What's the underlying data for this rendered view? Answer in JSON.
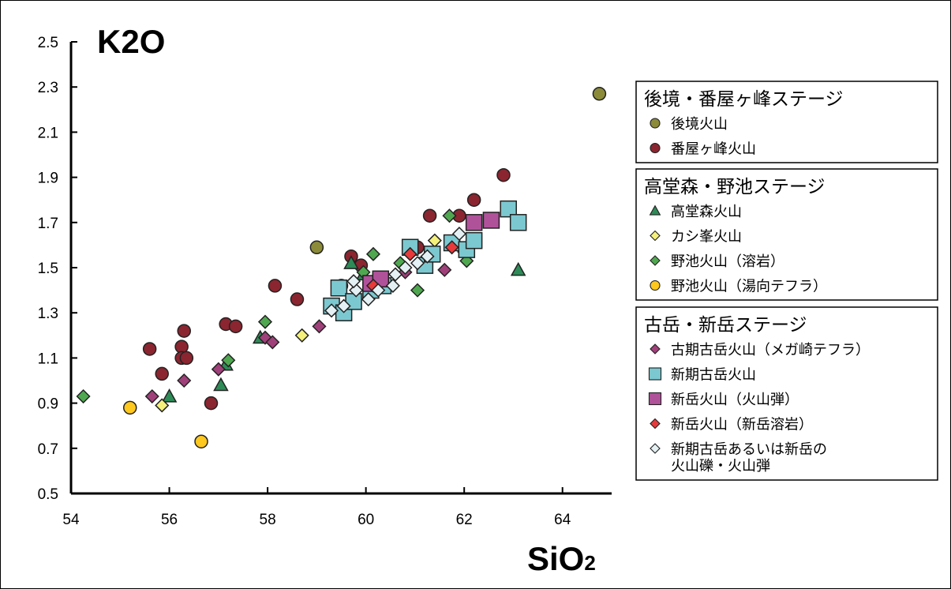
{
  "chart_data": {
    "type": "scatter",
    "ylabel": "K2O",
    "xlabel_main": "SiO",
    "xlabel_sub": "2",
    "xlim": [
      54,
      65
    ],
    "ylim": [
      0.5,
      2.5
    ],
    "xticks": [
      "54",
      "56",
      "58",
      "60",
      "62",
      "64"
    ],
    "yticks": [
      "2.5",
      "2.3",
      "2.1",
      "1.9",
      "1.7",
      "1.5",
      "1.3",
      "1.1",
      "0.9",
      "0.7",
      "0.5"
    ],
    "legend_groups": [
      {
        "title": "後境・番屋ヶ峰ステージ",
        "items": [
          {
            "label": "後境火山",
            "series": 0
          },
          {
            "label": "番屋ヶ峰火山",
            "series": 1
          }
        ]
      },
      {
        "title": "高堂森・野池ステージ",
        "items": [
          {
            "label": "高堂森火山",
            "series": 2
          },
          {
            "label": "カシ峯火山",
            "series": 3
          },
          {
            "label": "野池火山（溶岩）",
            "series": 4
          },
          {
            "label": "野池火山（湯向テフラ）",
            "series": 5
          }
        ]
      },
      {
        "title": "古岳・新岳ステージ",
        "items": [
          {
            "label": "古期古岳火山（メガ崎テフラ）",
            "series": 6
          },
          {
            "label": "新期古岳火山",
            "series": 7
          },
          {
            "label": "新岳火山（火山弾）",
            "series": 8
          },
          {
            "label": "新岳火山（新岳溶岩）",
            "series": 9
          },
          {
            "label": "新期古岳あるいは新岳の",
            "label2": "火山礫・火山弾",
            "series": 10
          }
        ]
      }
    ],
    "series": [
      {
        "name": "後境火山",
        "marker": "circle",
        "color": "#8b8b3a",
        "points": [
          [
            59.0,
            1.59
          ],
          [
            64.75,
            2.27
          ]
        ]
      },
      {
        "name": "番屋ヶ峰火山",
        "marker": "circle",
        "color": "#8b2530",
        "points": [
          [
            55.6,
            1.14
          ],
          [
            55.85,
            1.03
          ],
          [
            56.25,
            1.15
          ],
          [
            56.3,
            1.22
          ],
          [
            56.25,
            1.1
          ],
          [
            56.35,
            1.1
          ],
          [
            56.85,
            0.9
          ],
          [
            57.15,
            1.25
          ],
          [
            57.35,
            1.24
          ],
          [
            58.15,
            1.42
          ],
          [
            58.6,
            1.36
          ],
          [
            59.5,
            1.42
          ],
          [
            59.7,
            1.55
          ],
          [
            59.9,
            1.51
          ],
          [
            61.3,
            1.73
          ],
          [
            61.05,
            1.59
          ],
          [
            61.9,
            1.73
          ],
          [
            62.2,
            1.8
          ],
          [
            62.8,
            1.91
          ]
        ]
      },
      {
        "name": "高堂森火山",
        "marker": "triangle",
        "color": "#2e8b57",
        "points": [
          [
            56.0,
            0.93
          ],
          [
            57.05,
            0.98
          ],
          [
            57.15,
            1.07
          ],
          [
            57.85,
            1.19
          ],
          [
            59.7,
            1.52
          ],
          [
            59.95,
            1.47
          ],
          [
            63.1,
            1.49
          ]
        ]
      },
      {
        "name": "カシ峯火山",
        "marker": "diamond",
        "color": "#f5f07a",
        "points": [
          [
            55.85,
            0.89
          ],
          [
            58.7,
            1.2
          ],
          [
            61.4,
            1.62
          ],
          [
            62.0,
            1.57
          ]
        ]
      },
      {
        "name": "野池火山（溶岩）",
        "marker": "diamond",
        "color": "#4fa850",
        "points": [
          [
            54.25,
            0.93
          ],
          [
            57.2,
            1.09
          ],
          [
            57.95,
            1.26
          ],
          [
            59.95,
            1.48
          ],
          [
            60.15,
            1.56
          ],
          [
            60.7,
            1.52
          ],
          [
            61.05,
            1.4
          ],
          [
            61.7,
            1.73
          ],
          [
            62.05,
            1.53
          ]
        ]
      },
      {
        "name": "野池火山（湯向テフラ）",
        "marker": "circle",
        "color": "#ffc81e",
        "points": [
          [
            55.2,
            0.88
          ],
          [
            56.65,
            0.73
          ]
        ]
      },
      {
        "name": "古期古岳火山（メガ崎テフラ）",
        "marker": "diamond",
        "color": "#a0407a",
        "points": [
          [
            55.65,
            0.93
          ],
          [
            56.3,
            1.0
          ],
          [
            57.0,
            1.05
          ],
          [
            57.95,
            1.19
          ],
          [
            58.1,
            1.17
          ],
          [
            59.05,
            1.24
          ],
          [
            60.4,
            1.44
          ],
          [
            60.8,
            1.48
          ],
          [
            61.6,
            1.49
          ]
        ]
      },
      {
        "name": "新期古岳火山",
        "marker": "square",
        "color": "#7cc8d0",
        "points": [
          [
            59.3,
            1.33
          ],
          [
            59.45,
            1.41
          ],
          [
            59.55,
            1.3
          ],
          [
            59.75,
            1.35
          ],
          [
            60.1,
            1.4
          ],
          [
            60.35,
            1.42
          ],
          [
            60.9,
            1.59
          ],
          [
            61.2,
            1.51
          ],
          [
            61.35,
            1.56
          ],
          [
            61.75,
            1.61
          ],
          [
            62.05,
            1.58
          ],
          [
            62.2,
            1.62
          ],
          [
            62.9,
            1.76
          ],
          [
            63.1,
            1.7
          ]
        ]
      },
      {
        "name": "新岳火山（火山弾）",
        "marker": "square",
        "color": "#b0529a",
        "points": [
          [
            60.1,
            1.43
          ],
          [
            60.3,
            1.45
          ],
          [
            62.2,
            1.7
          ],
          [
            62.55,
            1.71
          ]
        ]
      },
      {
        "name": "新岳火山（新岳溶岩）",
        "marker": "diamond",
        "color": "#e83a3a",
        "points": [
          [
            60.15,
            1.42
          ],
          [
            60.9,
            1.56
          ],
          [
            61.75,
            1.59
          ]
        ]
      },
      {
        "name": "新期古岳あるいは新岳の火山礫・火山弾",
        "marker": "diamond",
        "color": "#e4f0f4",
        "points": [
          [
            59.3,
            1.31
          ],
          [
            59.55,
            1.33
          ],
          [
            59.8,
            1.4
          ],
          [
            60.05,
            1.36
          ],
          [
            60.25,
            1.4
          ],
          [
            60.55,
            1.42
          ],
          [
            60.8,
            1.5
          ],
          [
            61.05,
            1.52
          ],
          [
            61.25,
            1.55
          ],
          [
            61.9,
            1.65
          ],
          [
            59.75,
            1.44
          ],
          [
            60.6,
            1.47
          ]
        ]
      }
    ]
  }
}
